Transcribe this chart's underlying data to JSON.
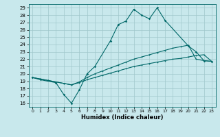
{
  "xlabel": "Humidex (Indice chaleur)",
  "bg_color": "#c8e8ec",
  "grid_color": "#a0c8cc",
  "line_color": "#006868",
  "xlim": [
    -0.5,
    23.5
  ],
  "ylim": [
    15.5,
    29.5
  ],
  "xticks": [
    0,
    1,
    2,
    3,
    4,
    5,
    6,
    7,
    8,
    9,
    10,
    11,
    12,
    13,
    14,
    15,
    16,
    17,
    18,
    19,
    20,
    21,
    22,
    23
  ],
  "yticks": [
    16,
    17,
    18,
    19,
    20,
    21,
    22,
    23,
    24,
    25,
    26,
    27,
    28,
    29
  ],
  "line1_x": [
    0,
    1,
    2,
    3,
    4,
    5,
    6,
    7,
    8,
    9,
    10,
    11,
    12,
    13,
    14,
    15,
    16,
    17,
    18,
    19,
    20,
    21,
    22,
    23
  ],
  "line1_y": [
    19.5,
    19.3,
    19.1,
    18.9,
    18.7,
    18.5,
    18.8,
    19.2,
    19.5,
    19.8,
    20.1,
    20.4,
    20.7,
    21.0,
    21.2,
    21.4,
    21.6,
    21.8,
    22.0,
    22.1,
    22.3,
    22.5,
    22.6,
    21.7
  ],
  "line2_x": [
    0,
    1,
    2,
    3,
    4,
    5,
    6,
    7,
    8,
    9,
    10,
    11,
    12,
    13,
    14,
    15,
    16,
    17,
    18,
    19,
    20,
    21,
    22,
    23
  ],
  "line2_y": [
    19.5,
    19.3,
    19.1,
    18.9,
    18.7,
    18.5,
    18.9,
    19.5,
    20.0,
    20.4,
    20.8,
    21.2,
    21.6,
    22.0,
    22.3,
    22.6,
    22.9,
    23.2,
    23.5,
    23.7,
    23.9,
    22.0,
    21.8,
    21.7
  ],
  "line3_x": [
    0,
    1,
    3,
    4,
    5,
    6,
    7,
    8,
    10,
    11,
    12,
    13,
    14,
    15,
    16,
    17,
    20,
    21,
    22,
    23
  ],
  "line3_y": [
    19.5,
    19.2,
    18.8,
    17.2,
    16.0,
    17.8,
    20.0,
    21.0,
    24.5,
    26.7,
    27.2,
    28.8,
    28.0,
    27.5,
    29.0,
    27.3,
    23.8,
    23.0,
    21.8,
    21.7
  ]
}
